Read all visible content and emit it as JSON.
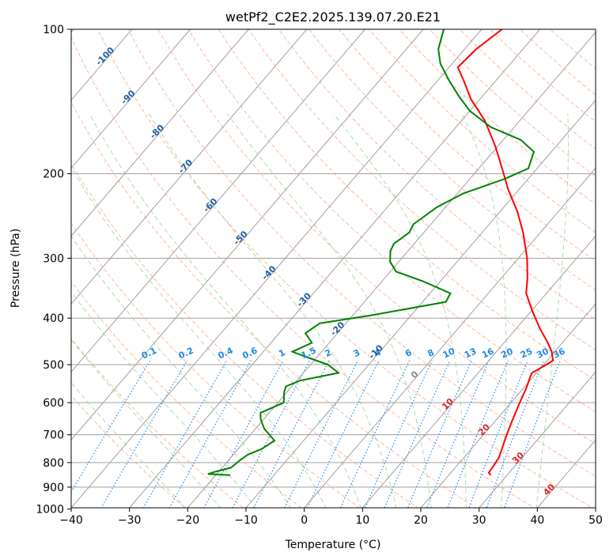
{
  "chart_data": {
    "type": "line",
    "chart_kind": "skew-t log-p diagram",
    "title": "wetPf2_C2E2.2025.139.07.20.E21",
    "xlabel": "Temperature (°C)",
    "ylabel": "Pressure (hPa)",
    "xlim": [
      -40,
      50
    ],
    "ylim": [
      1050,
      100
    ],
    "y_scale": "log",
    "x_ticks": [
      -40,
      -30,
      -20,
      -10,
      0,
      10,
      20,
      30,
      40,
      50
    ],
    "y_ticks": [
      100,
      200,
      300,
      400,
      500,
      600,
      700,
      800,
      900,
      1000
    ],
    "grid": true,
    "background_lines": {
      "isotherms_color": "#a0a0a0",
      "dry_adiabats_color": "#ff9f80",
      "moist_adiabats_color": "#9fd39f",
      "mixing_ratio_color": "#1e8ae6"
    },
    "mixing_ratio_labels": [
      "0.1",
      "0.2",
      "0.4",
      "0.6",
      "1",
      "1.5",
      "2",
      "3",
      "4",
      "6",
      "8",
      "10",
      "13",
      "16",
      "20",
      "25",
      "30",
      "36"
    ],
    "isotherm_labels": [
      {
        "text": "-100",
        "value": -100
      },
      {
        "text": "-90",
        "value": -90
      },
      {
        "text": "-80",
        "value": -80
      },
      {
        "text": "-70",
        "value": -70
      },
      {
        "text": "-60",
        "value": -60
      },
      {
        "text": "-50",
        "value": -50
      },
      {
        "text": "-40",
        "value": -40
      },
      {
        "text": "-30",
        "value": -30
      },
      {
        "text": "-20",
        "value": -20
      },
      {
        "text": "-10",
        "value": -10
      },
      {
        "text": "0",
        "value": 0
      },
      {
        "text": "10",
        "value": 10
      },
      {
        "text": "20",
        "value": 20
      },
      {
        "text": "30",
        "value": 30
      },
      {
        "text": "40",
        "value": 40
      }
    ],
    "series": [
      {
        "color": "#ff0000",
        "points": [
          {
            "T": 27.2,
            "p": 850
          },
          {
            "T": 26.5,
            "p": 840
          },
          {
            "T": 26.3,
            "p": 810
          },
          {
            "T": 26.0,
            "p": 780
          },
          {
            "T": 24.5,
            "p": 720
          },
          {
            "T": 23.5,
            "p": 680
          },
          {
            "T": 22.5,
            "p": 640
          },
          {
            "T": 21.5,
            "p": 600
          },
          {
            "T": 20.5,
            "p": 560
          },
          {
            "T": 19.5,
            "p": 530
          },
          {
            "T": 19.2,
            "p": 520
          },
          {
            "T": 20.5,
            "p": 500
          },
          {
            "T": 21.0,
            "p": 490
          },
          {
            "T": 19.5,
            "p": 470
          },
          {
            "T": 17.5,
            "p": 450
          },
          {
            "T": 14.0,
            "p": 420
          },
          {
            "T": 10.0,
            "p": 385
          },
          {
            "T": 6.5,
            "p": 355
          },
          {
            "T": 4.5,
            "p": 330
          },
          {
            "T": 1.5,
            "p": 300
          },
          {
            "T": -3.0,
            "p": 265
          },
          {
            "T": -7.0,
            "p": 240
          },
          {
            "T": -12.0,
            "p": 215
          },
          {
            "T": -16.0,
            "p": 195
          },
          {
            "T": -20.5,
            "p": 175
          },
          {
            "T": -26.0,
            "p": 155
          },
          {
            "T": -31.5,
            "p": 140
          },
          {
            "T": -35.5,
            "p": 128
          },
          {
            "T": -38.5,
            "p": 120
          },
          {
            "T": -38.0,
            "p": 110
          },
          {
            "T": -36.5,
            "p": 100
          }
        ]
      },
      {
        "color": "#008000",
        "points": [
          {
            "T": -17.5,
            "p": 850
          },
          {
            "T": -21.5,
            "p": 845
          },
          {
            "T": -20.5,
            "p": 835
          },
          {
            "T": -18.5,
            "p": 820
          },
          {
            "T": -18.0,
            "p": 790
          },
          {
            "T": -17.5,
            "p": 770
          },
          {
            "T": -16.0,
            "p": 750
          },
          {
            "T": -15.0,
            "p": 720
          },
          {
            "T": -18.5,
            "p": 680
          },
          {
            "T": -20.5,
            "p": 650
          },
          {
            "T": -21.5,
            "p": 630
          },
          {
            "T": -19.0,
            "p": 600
          },
          {
            "T": -20.5,
            "p": 570
          },
          {
            "T": -21.0,
            "p": 555
          },
          {
            "T": -19.5,
            "p": 540
          },
          {
            "T": -14.0,
            "p": 520
          },
          {
            "T": -17.0,
            "p": 500
          },
          {
            "T": -21.0,
            "p": 485
          },
          {
            "T": -25.0,
            "p": 470
          },
          {
            "T": -23.0,
            "p": 450
          },
          {
            "T": -25.5,
            "p": 430
          },
          {
            "T": -24.5,
            "p": 410
          },
          {
            "T": -17.0,
            "p": 395
          },
          {
            "T": -6.0,
            "p": 370
          },
          {
            "T": -6.5,
            "p": 355
          },
          {
            "T": -13.0,
            "p": 335
          },
          {
            "T": -19.0,
            "p": 320
          },
          {
            "T": -21.5,
            "p": 305
          },
          {
            "T": -23.0,
            "p": 290
          },
          {
            "T": -23.5,
            "p": 280
          },
          {
            "T": -22.5,
            "p": 265
          },
          {
            "T": -23.0,
            "p": 255
          },
          {
            "T": -21.5,
            "p": 235
          },
          {
            "T": -19.0,
            "p": 220
          },
          {
            "T": -14.0,
            "p": 205
          },
          {
            "T": -11.5,
            "p": 195
          },
          {
            "T": -13.0,
            "p": 180
          },
          {
            "T": -17.0,
            "p": 170
          },
          {
            "T": -24.0,
            "p": 160
          },
          {
            "T": -30.0,
            "p": 148
          },
          {
            "T": -34.0,
            "p": 138
          },
          {
            "T": -38.0,
            "p": 128
          },
          {
            "T": -42.0,
            "p": 118
          },
          {
            "T": -44.5,
            "p": 110
          },
          {
            "T": -46.5,
            "p": 100
          }
        ]
      }
    ]
  }
}
